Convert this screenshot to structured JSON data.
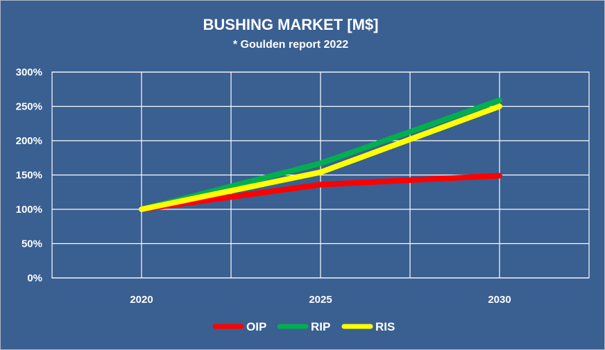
{
  "chart_data": {
    "type": "line",
    "title": "BUSHING MARKET [M$]",
    "subtitle": "* Goulden report 2022",
    "x": [
      "2020",
      "2025",
      "2030"
    ],
    "series": [
      {
        "name": "OIP",
        "color": "#ff0000",
        "values": [
          100,
          136,
          149
        ]
      },
      {
        "name": "RIP",
        "color": "#00b050",
        "values": [
          100,
          167,
          259
        ]
      },
      {
        "name": "RIS",
        "color": "#ffff00",
        "values": [
          100,
          154,
          250
        ]
      }
    ],
    "y_ticks": [
      "0%",
      "50%",
      "100%",
      "150%",
      "200%",
      "250%",
      "300%"
    ],
    "ylim": [
      0,
      300
    ],
    "y_unit": "%",
    "grid": true,
    "legend_position": "bottom",
    "colors": {
      "background": "#3a5f91",
      "grid": "#ffffff",
      "text": "#ffffff"
    }
  }
}
